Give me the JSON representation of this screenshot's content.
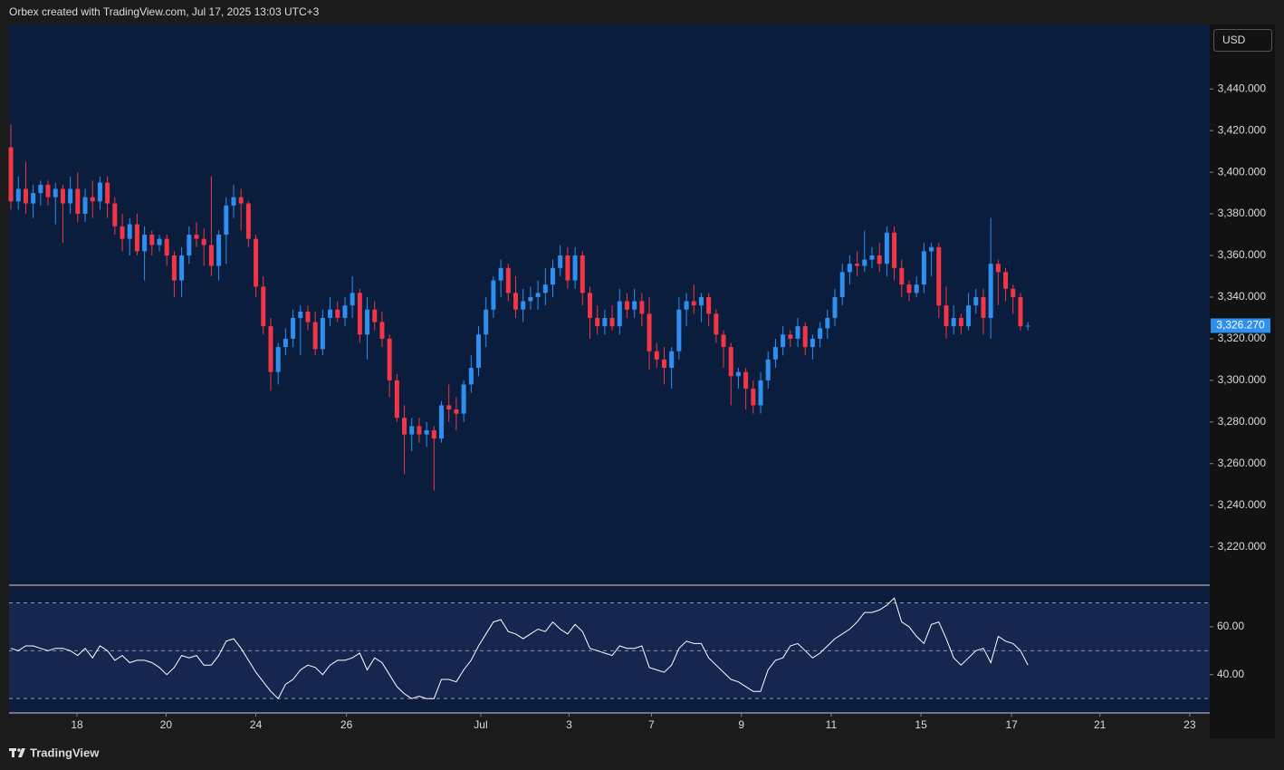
{
  "header": {
    "text": "Orbex created with TradingView.com, Jul 17, 2025 13:03 UTC+3"
  },
  "footer": {
    "brand": "TradingView"
  },
  "chart_data": {
    "type": "candlestick",
    "currency": "USD",
    "up_color": "#2f8ff0",
    "down_color": "#f23645",
    "ohlc": [
      [
        3412,
        3423,
        3382,
        3386
      ],
      [
        3386,
        3398,
        3382,
        3392
      ],
      [
        3392,
        3405,
        3380,
        3385
      ],
      [
        3385,
        3394,
        3378,
        3390
      ],
      [
        3390,
        3396,
        3384,
        3394
      ],
      [
        3394,
        3396,
        3384,
        3388
      ],
      [
        3388,
        3395,
        3375,
        3392
      ],
      [
        3392,
        3394,
        3366,
        3385
      ],
      [
        3385,
        3398,
        3380,
        3392
      ],
      [
        3392,
        3400,
        3376,
        3380
      ],
      [
        3380,
        3392,
        3376,
        3388
      ],
      [
        3388,
        3396,
        3378,
        3386
      ],
      [
        3386,
        3398,
        3382,
        3395
      ],
      [
        3395,
        3398,
        3378,
        3385
      ],
      [
        3385,
        3388,
        3370,
        3374
      ],
      [
        3374,
        3380,
        3362,
        3368
      ],
      [
        3368,
        3378,
        3360,
        3375
      ],
      [
        3375,
        3380,
        3360,
        3362
      ],
      [
        3362,
        3374,
        3348,
        3370
      ],
      [
        3370,
        3372,
        3360,
        3365
      ],
      [
        3365,
        3370,
        3362,
        3368
      ],
      [
        3368,
        3370,
        3355,
        3360
      ],
      [
        3360,
        3362,
        3340,
        3348
      ],
      [
        3348,
        3364,
        3340,
        3360
      ],
      [
        3360,
        3374,
        3356,
        3370
      ],
      [
        3370,
        3376,
        3364,
        3368
      ],
      [
        3368,
        3373,
        3355,
        3365
      ],
      [
        3365,
        3398,
        3350,
        3355
      ],
      [
        3355,
        3372,
        3348,
        3370
      ],
      [
        3370,
        3388,
        3356,
        3384
      ],
      [
        3384,
        3394,
        3378,
        3388
      ],
      [
        3388,
        3392,
        3372,
        3385
      ],
      [
        3385,
        3386,
        3364,
        3368
      ],
      [
        3368,
        3370,
        3340,
        3345
      ],
      [
        3345,
        3350,
        3322,
        3326
      ],
      [
        3326,
        3330,
        3295,
        3304
      ],
      [
        3304,
        3318,
        3298,
        3316
      ],
      [
        3316,
        3325,
        3312,
        3320
      ],
      [
        3320,
        3334,
        3316,
        3330
      ],
      [
        3330,
        3336,
        3312,
        3333
      ],
      [
        3333,
        3336,
        3324,
        3328
      ],
      [
        3328,
        3333,
        3312,
        3315
      ],
      [
        3315,
        3334,
        3312,
        3330
      ],
      [
        3330,
        3340,
        3326,
        3334
      ],
      [
        3334,
        3338,
        3328,
        3330
      ],
      [
        3330,
        3340,
        3326,
        3336
      ],
      [
        3336,
        3350,
        3330,
        3342
      ],
      [
        3342,
        3344,
        3318,
        3322
      ],
      [
        3322,
        3340,
        3310,
        3334
      ],
      [
        3334,
        3338,
        3324,
        3328
      ],
      [
        3328,
        3333,
        3316,
        3320
      ],
      [
        3320,
        3322,
        3292,
        3300
      ],
      [
        3300,
        3303,
        3280,
        3282
      ],
      [
        3282,
        3288,
        3255,
        3274
      ],
      [
        3274,
        3282,
        3266,
        3278
      ],
      [
        3278,
        3282,
        3270,
        3274
      ],
      [
        3274,
        3280,
        3268,
        3276
      ],
      [
        3276,
        3278,
        3247,
        3272
      ],
      [
        3272,
        3290,
        3270,
        3288
      ],
      [
        3288,
        3298,
        3280,
        3286
      ],
      [
        3286,
        3292,
        3276,
        3284
      ],
      [
        3284,
        3300,
        3280,
        3298
      ],
      [
        3298,
        3312,
        3294,
        3306
      ],
      [
        3306,
        3326,
        3302,
        3322
      ],
      [
        3322,
        3340,
        3316,
        3334
      ],
      [
        3334,
        3350,
        3330,
        3348
      ],
      [
        3348,
        3358,
        3340,
        3354
      ],
      [
        3354,
        3356,
        3338,
        3342
      ],
      [
        3342,
        3350,
        3330,
        3334
      ],
      [
        3334,
        3344,
        3328,
        3338
      ],
      [
        3338,
        3345,
        3334,
        3340
      ],
      [
        3340,
        3348,
        3334,
        3342
      ],
      [
        3342,
        3354,
        3336,
        3346
      ],
      [
        3346,
        3358,
        3340,
        3354
      ],
      [
        3354,
        3365,
        3350,
        3360
      ],
      [
        3360,
        3364,
        3344,
        3348
      ],
      [
        3348,
        3364,
        3344,
        3360
      ],
      [
        3360,
        3362,
        3336,
        3342
      ],
      [
        3342,
        3345,
        3320,
        3330
      ],
      [
        3330,
        3336,
        3322,
        3326
      ],
      [
        3326,
        3334,
        3322,
        3330
      ],
      [
        3330,
        3336,
        3324,
        3326
      ],
      [
        3326,
        3344,
        3322,
        3338
      ],
      [
        3338,
        3342,
        3330,
        3334
      ],
      [
        3334,
        3344,
        3330,
        3338
      ],
      [
        3338,
        3342,
        3326,
        3332
      ],
      [
        3332,
        3340,
        3305,
        3314
      ],
      [
        3314,
        3318,
        3306,
        3310
      ],
      [
        3310,
        3316,
        3298,
        3306
      ],
      [
        3306,
        3316,
        3296,
        3314
      ],
      [
        3314,
        3340,
        3310,
        3334
      ],
      [
        3334,
        3342,
        3326,
        3338
      ],
      [
        3338,
        3346,
        3332,
        3336
      ],
      [
        3336,
        3342,
        3328,
        3340
      ],
      [
        3340,
        3342,
        3326,
        3332
      ],
      [
        3332,
        3334,
        3318,
        3322
      ],
      [
        3322,
        3324,
        3306,
        3316
      ],
      [
        3316,
        3318,
        3288,
        3302
      ],
      [
        3302,
        3306,
        3296,
        3304
      ],
      [
        3304,
        3306,
        3286,
        3296
      ],
      [
        3296,
        3300,
        3284,
        3288
      ],
      [
        3288,
        3304,
        3284,
        3300
      ],
      [
        3300,
        3314,
        3296,
        3310
      ],
      [
        3310,
        3320,
        3306,
        3316
      ],
      [
        3316,
        3326,
        3312,
        3322
      ],
      [
        3322,
        3324,
        3316,
        3320
      ],
      [
        3320,
        3330,
        3316,
        3326
      ],
      [
        3326,
        3328,
        3312,
        3316
      ],
      [
        3316,
        3322,
        3310,
        3320
      ],
      [
        3320,
        3328,
        3316,
        3325
      ],
      [
        3325,
        3334,
        3320,
        3330
      ],
      [
        3330,
        3344,
        3326,
        3340
      ],
      [
        3340,
        3356,
        3336,
        3352
      ],
      [
        3352,
        3360,
        3346,
        3356
      ],
      [
        3356,
        3362,
        3350,
        3355
      ],
      [
        3355,
        3372,
        3352,
        3358
      ],
      [
        3358,
        3364,
        3354,
        3360
      ],
      [
        3360,
        3366,
        3352,
        3356
      ],
      [
        3356,
        3374,
        3350,
        3371
      ],
      [
        3371,
        3374,
        3348,
        3354
      ],
      [
        3354,
        3358,
        3340,
        3346
      ],
      [
        3346,
        3348,
        3338,
        3342
      ],
      [
        3342,
        3350,
        3340,
        3346
      ],
      [
        3346,
        3366,
        3342,
        3362
      ],
      [
        3362,
        3366,
        3350,
        3364
      ],
      [
        3364,
        3366,
        3330,
        3336
      ],
      [
        3336,
        3345,
        3320,
        3326
      ],
      [
        3326,
        3336,
        3322,
        3330
      ],
      [
        3330,
        3332,
        3322,
        3326
      ],
      [
        3326,
        3342,
        3324,
        3336
      ],
      [
        3336,
        3344,
        3332,
        3340
      ],
      [
        3340,
        3344,
        3322,
        3330
      ],
      [
        3330,
        3378,
        3320,
        3356
      ],
      [
        3356,
        3358,
        3336,
        3352
      ],
      [
        3352,
        3354,
        3338,
        3344
      ],
      [
        3344,
        3346,
        3332,
        3340
      ],
      [
        3340,
        3342,
        3324,
        3326
      ],
      [
        3326,
        3328,
        3324,
        3326.27
      ]
    ],
    "ylim": [
      3202,
      3471
    ],
    "yticks": [
      {
        "value": 3220,
        "label": "3,220.000"
      },
      {
        "value": 3240,
        "label": "3,240.000"
      },
      {
        "value": 3260,
        "label": "3,260.000"
      },
      {
        "value": 3280,
        "label": "3,280.000"
      },
      {
        "value": 3300,
        "label": "3,300.000"
      },
      {
        "value": 3320,
        "label": "3,320.000"
      },
      {
        "value": 3340,
        "label": "3,340.000"
      },
      {
        "value": 3360,
        "label": "3,360.000"
      },
      {
        "value": 3380,
        "label": "3,380.000"
      },
      {
        "value": 3400,
        "label": "3,400.000"
      },
      {
        "value": 3420,
        "label": "3,420.000"
      },
      {
        "value": 3440,
        "label": "3,440.000"
      }
    ],
    "last_price": {
      "value": 3326.27,
      "label": "3,326.270"
    },
    "xlim": [
      -0.25,
      161.5
    ],
    "xticks": [
      {
        "value": 8.9,
        "label": "18"
      },
      {
        "value": 20.9,
        "label": "20"
      },
      {
        "value": 33.0,
        "label": "24"
      },
      {
        "value": 45.2,
        "label": "26"
      },
      {
        "value": 63.3,
        "label": "Jul"
      },
      {
        "value": 75.2,
        "label": "3"
      },
      {
        "value": 86.3,
        "label": "7"
      },
      {
        "value": 98.4,
        "label": "9"
      },
      {
        "value": 110.5,
        "label": "11"
      },
      {
        "value": 122.6,
        "label": "15"
      },
      {
        "value": 134.8,
        "label": "17"
      },
      {
        "value": 146.7,
        "label": "21"
      },
      {
        "value": 158.8,
        "label": "23"
      }
    ],
    "rsi": {
      "type": "line",
      "color": "#ffffff",
      "ylim": [
        24,
        77
      ],
      "yticks": [
        {
          "value": 60,
          "label": "60.00"
        },
        {
          "value": 40,
          "label": "40.00"
        }
      ],
      "levels": [
        70,
        50,
        30
      ],
      "band": [
        30,
        70
      ],
      "values": [
        51,
        50,
        52,
        52,
        51,
        50,
        51,
        51,
        50,
        48,
        51,
        47,
        52,
        50,
        46,
        48,
        45,
        46,
        46,
        45,
        43,
        40,
        43,
        48,
        47,
        48,
        44,
        44,
        48,
        54,
        55,
        51,
        46,
        41,
        37,
        33,
        30,
        36,
        38,
        42,
        44,
        43,
        40,
        44,
        46,
        46,
        47,
        49,
        42,
        47,
        45,
        40,
        35,
        32,
        30,
        31,
        30,
        30,
        38,
        38,
        37,
        42,
        46,
        52,
        57,
        62,
        63,
        58,
        57,
        55,
        57,
        59,
        58,
        62,
        59,
        57,
        61,
        58,
        51,
        50,
        49,
        48,
        52,
        51,
        51,
        52,
        43,
        42,
        41,
        44,
        51,
        54,
        53,
        53,
        47,
        44,
        41,
        38,
        37,
        35,
        33,
        33,
        42,
        46,
        47,
        52,
        53,
        50,
        47,
        49,
        52,
        55,
        57,
        59,
        62,
        66,
        66,
        67,
        69,
        72,
        62,
        60,
        56,
        53,
        61,
        62,
        55,
        47,
        44,
        47,
        50,
        51,
        45,
        56,
        54,
        53,
        50,
        44
      ]
    }
  }
}
